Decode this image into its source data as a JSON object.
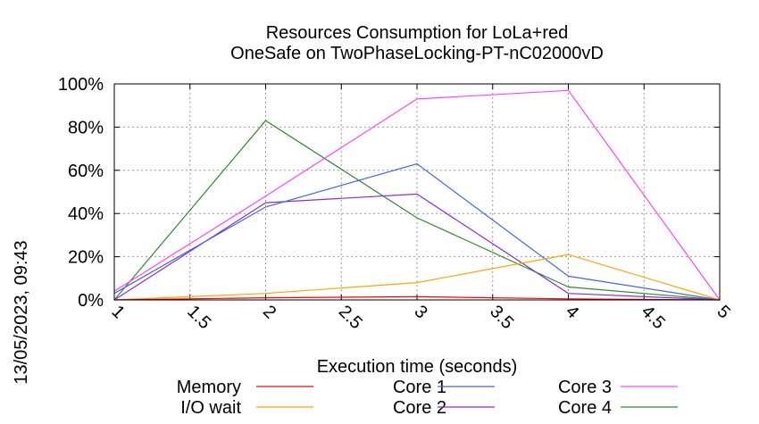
{
  "chart_data": {
    "type": "line",
    "title": "Resources Consumption for LoLa+red",
    "subtitle": "OneSafe on TwoPhaseLocking-PT-nC02000vD",
    "xlabel": "Execution time (seconds)",
    "side_label": "13/05/2023, 09:43",
    "xlim": [
      1,
      5
    ],
    "ylim": [
      0,
      100
    ],
    "x_ticks": [
      "1",
      "1.5",
      "2",
      "2.5",
      "3",
      "3.5",
      "4",
      "4.5",
      "5"
    ],
    "y_ticks": [
      "0%",
      "20%",
      "40%",
      "60%",
      "80%",
      "100%"
    ],
    "grid": true,
    "legend_position": "bottom",
    "x": [
      1,
      2,
      3,
      4,
      5
    ],
    "series": [
      {
        "name": "Memory",
        "color": "#ff0000",
        "values": [
          0,
          1,
          1.5,
          0.5,
          0
        ]
      },
      {
        "name": "I/O wait",
        "color": "#ffa500",
        "values": [
          0,
          3,
          8,
          21,
          0
        ]
      },
      {
        "name": "Core 1",
        "color": "#4169e1",
        "values": [
          3,
          43,
          63,
          11,
          0
        ]
      },
      {
        "name": "Core 2",
        "color": "#8a2be2",
        "values": [
          0,
          45,
          49,
          3,
          0
        ]
      },
      {
        "name": "Core 3",
        "color": "#ff44ff",
        "values": [
          4,
          48,
          93,
          97,
          0
        ]
      },
      {
        "name": "Core 4",
        "color": "#2e8b2e",
        "values": [
          0,
          83,
          38,
          6,
          0
        ]
      }
    ]
  }
}
